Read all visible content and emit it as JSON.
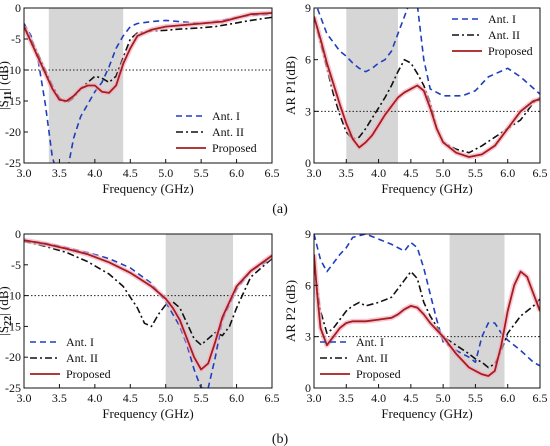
{
  "captions": [
    "(a)",
    "(b)"
  ],
  "chart_data": [
    {
      "type": "line",
      "xlabel": "Frequency (GHz)",
      "ylabel_pre": "|S",
      "ylabel_sub": "11",
      "ylabel_post": "| (dB)",
      "xlim": [
        3.0,
        6.5
      ],
      "ylim": [
        -25,
        0
      ],
      "xticks": [
        "3.0",
        "3.5",
        "4.0",
        "4.5",
        "5.0",
        "5.5",
        "6.0",
        "6.5"
      ],
      "yticks": [
        "0",
        "-5",
        "-10",
        "-15",
        "-20",
        "-25"
      ],
      "band": [
        3.35,
        4.4
      ],
      "refline": -10,
      "legend_position": "bottom-right",
      "series": [
        {
          "name": "Ant. I",
          "style": "dashed",
          "color": "#1f3fbf",
          "x": [
            3.0,
            3.1,
            3.2,
            3.3,
            3.4,
            3.5,
            3.6,
            3.7,
            3.8,
            3.9,
            4.0,
            4.1,
            4.2,
            4.3,
            4.4,
            4.5,
            4.6,
            4.8,
            5.0,
            5.2,
            5.5,
            5.8,
            6.0,
            6.2,
            6.5
          ],
          "y": [
            -2.5,
            -4.5,
            -8.5,
            -15.5,
            -24,
            -28,
            -27,
            -21,
            -17.5,
            -15.5,
            -13.5,
            -12,
            -9.5,
            -6.5,
            -4.5,
            -3,
            -2.5,
            -2.2,
            -2,
            -2.2,
            -2.5,
            -2,
            -1.5,
            -1.2,
            -1
          ]
        },
        {
          "name": "Ant. II",
          "style": "dashdot",
          "color": "#111111",
          "x": [
            3.0,
            3.1,
            3.2,
            3.3,
            3.4,
            3.5,
            3.6,
            3.7,
            3.8,
            3.9,
            4.0,
            4.1,
            4.2,
            4.3,
            4.4,
            4.5,
            4.6,
            4.8,
            5.0,
            5.2,
            5.5,
            5.7,
            6.0,
            6.2,
            6.5
          ],
          "y": [
            -3,
            -5,
            -7.5,
            -10,
            -12.5,
            -14.5,
            -15.3,
            -14.5,
            -13,
            -12,
            -11,
            -11.3,
            -12,
            -11,
            -8,
            -5,
            -4,
            -3.7,
            -3.6,
            -3.4,
            -3.2,
            -3,
            -2.4,
            -2,
            -1.5
          ]
        },
        {
          "name": "Proposed",
          "style": "solid",
          "color": "#a81c1c",
          "x": [
            3.0,
            3.1,
            3.2,
            3.3,
            3.4,
            3.5,
            3.6,
            3.7,
            3.8,
            3.9,
            4.0,
            4.1,
            4.2,
            4.3,
            4.4,
            4.5,
            4.6,
            4.8,
            5.0,
            5.2,
            5.5,
            5.8,
            6.0,
            6.2,
            6.5
          ],
          "y": [
            -3,
            -5.5,
            -8,
            -10.5,
            -13,
            -14.8,
            -15,
            -14.2,
            -13,
            -12.5,
            -12.5,
            -13.5,
            -13.7,
            -12.5,
            -9,
            -6.5,
            -4.5,
            -3.5,
            -3,
            -2.8,
            -2.5,
            -2.2,
            -1.6,
            -1,
            -0.8
          ]
        }
      ]
    },
    {
      "type": "line",
      "xlabel": "Frequency (GHz)",
      "ylabel": "AR P1(dB)",
      "xlim": [
        3.0,
        6.5
      ],
      "ylim": [
        0,
        9
      ],
      "xticks": [
        "3.0",
        "3.5",
        "4.0",
        "4.5",
        "5.0",
        "5.5",
        "6.0",
        "6.5"
      ],
      "yticks": [
        "9",
        "6",
        "3",
        "0"
      ],
      "band": [
        3.5,
        4.3
      ],
      "refline": 3,
      "legend_position": "top-right",
      "series": [
        {
          "name": "Ant. I",
          "style": "dashed",
          "color": "#1f3fbf",
          "x": [
            3.0,
            3.1,
            3.2,
            3.3,
            3.4,
            3.5,
            3.6,
            3.7,
            3.8,
            3.9,
            4.0,
            4.1,
            4.2,
            4.3,
            4.4,
            4.5,
            4.6,
            4.7,
            4.8,
            5.0,
            5.3,
            5.5,
            5.7,
            6.0,
            6.2,
            6.5
          ],
          "y": [
            9.5,
            8.5,
            7.5,
            7,
            6.5,
            6.2,
            5.8,
            5.5,
            5.3,
            5.5,
            5.8,
            6,
            6.5,
            7.5,
            8.5,
            9.5,
            9.2,
            6,
            4.3,
            3.9,
            3.9,
            4.2,
            5,
            5.5,
            5,
            4
          ]
        },
        {
          "name": "Ant. II",
          "style": "dashdot",
          "color": "#111111",
          "x": [
            3.0,
            3.1,
            3.2,
            3.3,
            3.4,
            3.5,
            3.6,
            3.7,
            3.8,
            3.9,
            4.0,
            4.1,
            4.2,
            4.3,
            4.4,
            4.5,
            4.6,
            4.7,
            4.8,
            4.9,
            5.0,
            5.2,
            5.4,
            5.6,
            5.8,
            6.0,
            6.2,
            6.4,
            6.5
          ],
          "y": [
            8.5,
            7,
            5.5,
            4,
            2.8,
            1.8,
            1.4,
            1.5,
            2,
            2.6,
            3.2,
            3.8,
            4.5,
            5.3,
            6,
            5.8,
            5.2,
            4.5,
            3.5,
            2,
            1.2,
            0.8,
            0.6,
            1,
            1.5,
            2,
            2.5,
            3.5,
            3.8
          ]
        },
        {
          "name": "Proposed",
          "style": "solid",
          "color": "#a81c1c",
          "x": [
            3.0,
            3.1,
            3.2,
            3.3,
            3.4,
            3.5,
            3.6,
            3.7,
            3.8,
            3.9,
            4.0,
            4.1,
            4.2,
            4.3,
            4.4,
            4.5,
            4.6,
            4.7,
            4.8,
            4.9,
            5.0,
            5.2,
            5.4,
            5.6,
            5.8,
            6.0,
            6.2,
            6.4,
            6.5
          ],
          "y": [
            8.5,
            7.2,
            5.8,
            4.6,
            3.4,
            2.3,
            1.4,
            0.9,
            1.2,
            1.6,
            2.2,
            2.8,
            3.3,
            3.8,
            4.1,
            4.3,
            4.5,
            4.2,
            3.2,
            2,
            1.2,
            0.6,
            0.35,
            0.5,
            1,
            2,
            3,
            3.6,
            3.7
          ]
        }
      ]
    },
    {
      "type": "line",
      "xlabel": "Frequency (GHz)",
      "ylabel_pre": "|S",
      "ylabel_sub": "22",
      "ylabel_post": "| (dB)",
      "xlim": [
        3.0,
        6.5
      ],
      "ylim": [
        -25,
        0
      ],
      "xticks": [
        "3.0",
        "3.5",
        "4.0",
        "4.5",
        "5.0",
        "5.5",
        "6.0",
        "6.5"
      ],
      "yticks": [
        "0",
        "-5",
        "-10",
        "-15",
        "-20",
        "-25"
      ],
      "band": [
        5.0,
        5.95
      ],
      "refline": -10,
      "legend_position": "bottom-left",
      "series": [
        {
          "name": "Ant. I",
          "style": "dashed",
          "color": "#1f3fbf",
          "x": [
            3.0,
            3.3,
            3.6,
            3.9,
            4.2,
            4.5,
            4.8,
            5.0,
            5.2,
            5.3,
            5.4,
            5.5,
            5.6,
            5.7,
            5.8,
            6.0,
            6.2,
            6.5
          ],
          "y": [
            -1,
            -1.5,
            -2.2,
            -3,
            -4,
            -5.5,
            -8,
            -11,
            -15,
            -18,
            -22,
            -25,
            -25,
            -20,
            -14,
            -9,
            -6,
            -4
          ]
        },
        {
          "name": "Ant. II",
          "style": "dashdot",
          "color": "#111111",
          "x": [
            3.0,
            3.3,
            3.6,
            3.9,
            4.2,
            4.4,
            4.6,
            4.7,
            4.8,
            4.9,
            5.0,
            5.1,
            5.2,
            5.3,
            5.4,
            5.5,
            5.6,
            5.7,
            5.8,
            5.9,
            6.0,
            6.2,
            6.5
          ],
          "y": [
            -1.2,
            -2,
            -3,
            -4.5,
            -6.5,
            -8.5,
            -12,
            -14.5,
            -15,
            -13,
            -11.5,
            -11,
            -12,
            -14.5,
            -17,
            -18,
            -17,
            -16,
            -16.5,
            -15,
            -12,
            -7,
            -4
          ]
        },
        {
          "name": "Proposed",
          "style": "solid",
          "color": "#a81c1c",
          "x": [
            3.0,
            3.3,
            3.6,
            3.9,
            4.2,
            4.5,
            4.8,
            5.0,
            5.1,
            5.2,
            5.3,
            5.4,
            5.5,
            5.6,
            5.7,
            5.8,
            6.0,
            6.2,
            6.5
          ],
          "y": [
            -1,
            -1.6,
            -2.4,
            -3.3,
            -4.6,
            -6.3,
            -8.5,
            -10.5,
            -12,
            -14,
            -17,
            -20,
            -22,
            -21,
            -17.5,
            -13.5,
            -8.5,
            -6,
            -3.5
          ]
        }
      ]
    },
    {
      "type": "line",
      "xlabel": "Frequency (GHz)",
      "ylabel": "AR P2 (dB)",
      "xlim": [
        3.0,
        6.5
      ],
      "ylim": [
        0,
        9
      ],
      "xticks": [
        "3.0",
        "3.5",
        "4.0",
        "4.5",
        "5.0",
        "5.5",
        "6.0",
        "6.5"
      ],
      "yticks": [
        "9",
        "6",
        "3",
        "0"
      ],
      "band": [
        5.1,
        5.95
      ],
      "refline": 3,
      "legend_position": "bottom-left",
      "series": [
        {
          "name": "Ant. I",
          "style": "dashed",
          "color": "#1f3fbf",
          "x": [
            3.0,
            3.1,
            3.2,
            3.3,
            3.4,
            3.5,
            3.6,
            3.8,
            4.0,
            4.2,
            4.4,
            4.5,
            4.6,
            4.7,
            4.8,
            4.9,
            5.0,
            5.2,
            5.4,
            5.5,
            5.6,
            5.7,
            5.8,
            5.9,
            6.0,
            6.2,
            6.4,
            6.5
          ],
          "y": [
            9,
            7.5,
            6.8,
            7.3,
            7.8,
            8.2,
            8.8,
            9,
            8.7,
            8.4,
            8,
            8.5,
            8.2,
            7,
            5.5,
            4,
            2.7,
            2.2,
            1.8,
            1.5,
            3,
            3.8,
            3.8,
            3.2,
            2.8,
            2.2,
            1.5,
            1.3
          ]
        },
        {
          "name": "Ant. II",
          "style": "dashdot",
          "color": "#111111",
          "x": [
            3.0,
            3.1,
            3.2,
            3.3,
            3.4,
            3.5,
            3.6,
            3.7,
            3.8,
            4.0,
            4.2,
            4.4,
            4.5,
            4.6,
            4.7,
            4.8,
            5.0,
            5.2,
            5.4,
            5.5,
            5.6,
            5.7,
            5.8,
            5.9,
            6.0,
            6.2,
            6.4,
            6.5
          ],
          "y": [
            7,
            4.5,
            3.2,
            3.5,
            4,
            4.5,
            4.8,
            5,
            4.8,
            5,
            5.3,
            6.3,
            6.8,
            6.4,
            5,
            4.2,
            3,
            2.5,
            2,
            1.7,
            1.5,
            1.2,
            1.4,
            2.2,
            3.2,
            4.2,
            4.8,
            5.2
          ]
        },
        {
          "name": "Proposed",
          "style": "solid",
          "color": "#a81c1c",
          "x": [
            3.0,
            3.05,
            3.1,
            3.2,
            3.3,
            3.4,
            3.5,
            3.6,
            3.8,
            4.0,
            4.2,
            4.3,
            4.4,
            4.5,
            4.6,
            4.7,
            4.8,
            5.0,
            5.2,
            5.4,
            5.6,
            5.7,
            5.8,
            5.9,
            6.0,
            6.1,
            6.2,
            6.3,
            6.4,
            6.5
          ],
          "y": [
            7.8,
            5.5,
            3.5,
            2.5,
            3,
            3.5,
            3.8,
            3.9,
            3.9,
            4,
            4.1,
            4.3,
            4.6,
            4.8,
            4.7,
            4.3,
            3.8,
            3,
            2,
            1.2,
            0.8,
            0.7,
            1,
            2.5,
            4.5,
            6,
            6.8,
            6.5,
            5.5,
            4.5
          ]
        }
      ]
    }
  ]
}
